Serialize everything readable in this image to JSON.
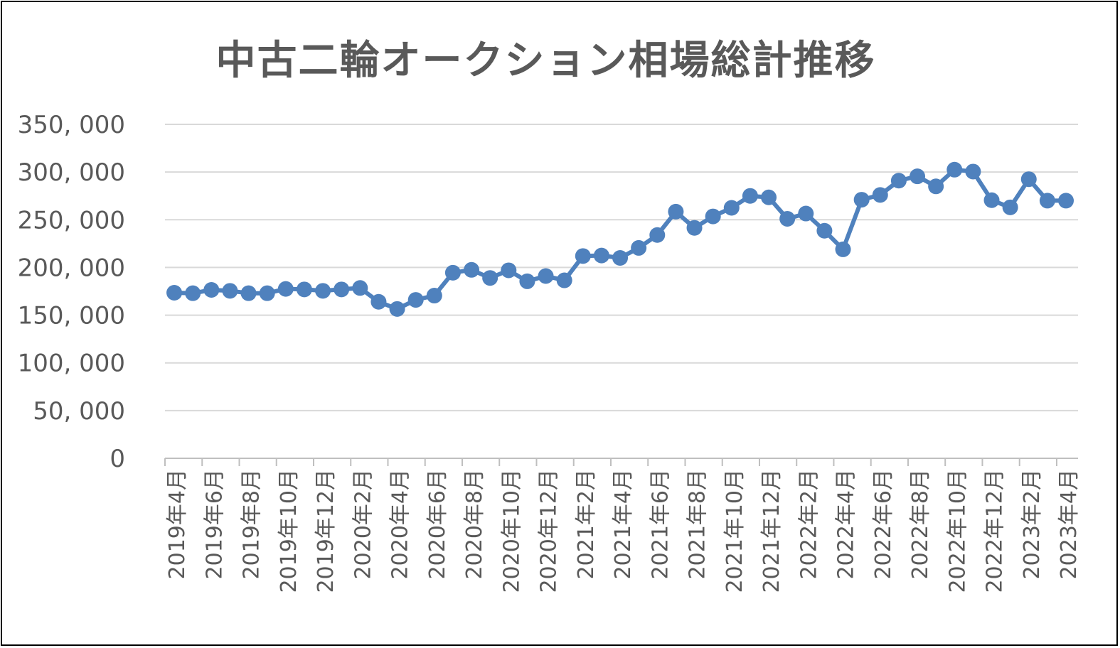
{
  "chart_data": {
    "type": "line",
    "title": "中古二輪オークション相場総計推移",
    "xlabel": "",
    "ylabel": "",
    "ylim": [
      0,
      350000
    ],
    "yticks": [
      0,
      50000,
      100000,
      150000,
      200000,
      250000,
      300000,
      350000
    ],
    "ytick_labels": [
      "0",
      "50, 000",
      "100, 000",
      "150, 000",
      "200, 000",
      "250, 000",
      "300, 000",
      "350, 000"
    ],
    "grid": true,
    "legend": "none",
    "series_color": "#4F81BD",
    "x_tick_labels": [
      "2019年4月",
      "2019年6月",
      "2019年8月",
      "2019年10月",
      "2019年12月",
      "2020年2月",
      "2020年4月",
      "2020年6月",
      "2020年8月",
      "2020年10月",
      "2020年12月",
      "2021年2月",
      "2021年4月",
      "2021年6月",
      "2021年8月",
      "2021年10月",
      "2021年12月",
      "2022年2月",
      "2022年4月",
      "2022年6月",
      "2022年8月",
      "2022年10月",
      "2022年12月",
      "2023年2月",
      "2023年4月"
    ],
    "x": [
      "2019年4月",
      "2019年5月",
      "2019年6月",
      "2019年7月",
      "2019年8月",
      "2019年9月",
      "2019年10月",
      "2019年11月",
      "2019年12月",
      "2020年1月",
      "2020年2月",
      "2020年3月",
      "2020年4月",
      "2020年5月",
      "2020年6月",
      "2020年7月",
      "2020年8月",
      "2020年9月",
      "2020年10月",
      "2020年11月",
      "2020年12月",
      "2021年1月",
      "2021年2月",
      "2021年3月",
      "2021年4月",
      "2021年5月",
      "2021年6月",
      "2021年7月",
      "2021年8月",
      "2021年9月",
      "2021年10月",
      "2021年11月",
      "2021年12月",
      "2022年1月",
      "2022年2月",
      "2022年3月",
      "2022年4月",
      "2022年5月",
      "2022年6月",
      "2022年7月",
      "2022年8月",
      "2022年9月",
      "2022年10月",
      "2022年11月",
      "2022年12月",
      "2023年1月",
      "2023年2月",
      "2023年3月",
      "2023年4月"
    ],
    "series": [
      {
        "values": [
          173500,
          173000,
          176500,
          175500,
          173000,
          173000,
          177500,
          177000,
          175500,
          177000,
          178500,
          164000,
          156500,
          166000,
          170500,
          194500,
          197500,
          189000,
          197000,
          185500,
          191000,
          186500,
          212000,
          212500,
          210000,
          220500,
          234000,
          258500,
          241500,
          253500,
          262500,
          275000,
          273500,
          251000,
          256500,
          238500,
          219000,
          271000,
          276000,
          291000,
          295500,
          285000,
          302500,
          300500,
          270500,
          263000,
          292500,
          270000,
          270000
        ]
      }
    ]
  }
}
